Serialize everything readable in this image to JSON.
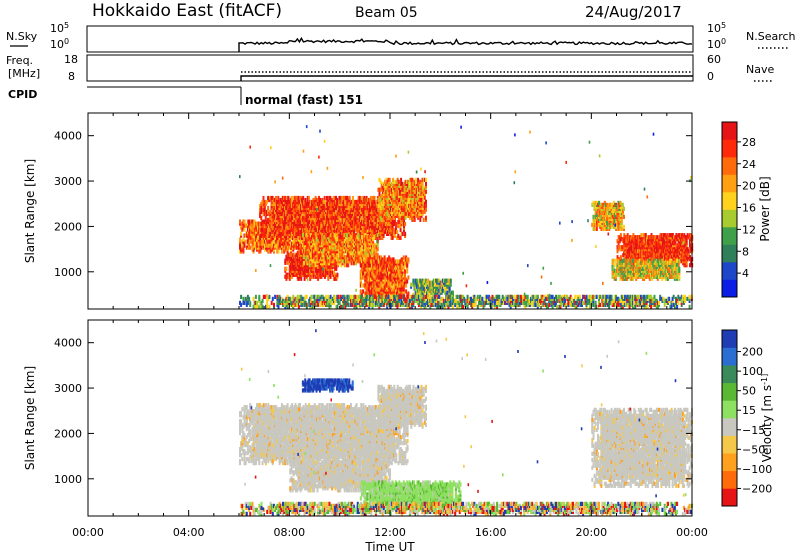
{
  "header": {
    "station": "Hokkaido East (fitACF)",
    "beam": "Beam 05",
    "date": "24/Aug/2017"
  },
  "top_panels": {
    "nsky_label": "N.Sky",
    "nsky_ticks": [
      "10^5",
      "10^0"
    ],
    "nsearch_label": "N.Search",
    "freq_label_line1": "Freq.",
    "freq_label_line2": "[MHz]",
    "freq_ticks": [
      "18",
      "8"
    ],
    "nave_ticks": [
      "60",
      "0"
    ],
    "nave_label": "Nave",
    "cpid_label": "CPID",
    "cpid_value": "normal (fast) 151"
  },
  "chart_data": [
    {
      "type": "heatmap",
      "name": "power",
      "ylabel": "Slant Range [km]",
      "xlabel": "",
      "xlim": [
        0,
        24
      ],
      "ylim": [
        180,
        4500
      ],
      "x_ticks": [
        "00:00",
        "04:00",
        "08:00",
        "12:00",
        "16:00",
        "20:00",
        "00:00"
      ],
      "y_ticks": [
        1000,
        2000,
        3000,
        4000
      ],
      "colorbar": {
        "label": "Power [dB]",
        "ticks": [
          "4",
          "8",
          "12",
          "16",
          "20",
          "24",
          "28"
        ],
        "colors": [
          "#0a1ee6",
          "#1e46c8",
          "#2f7f5a",
          "#3fa04a",
          "#a8cc30",
          "#ffd21e",
          "#ffa012",
          "#ff6a0a",
          "#ff2a0a",
          "#e61414"
        ]
      },
      "echo_regions": [
        {
          "t0": 6.0,
          "t1": 9.8,
          "r0": 1400,
          "r1": 2100,
          "level": 0.75
        },
        {
          "t0": 6.8,
          "t1": 12.6,
          "r0": 1700,
          "r1": 2600,
          "level": 0.85
        },
        {
          "t0": 7.8,
          "t1": 9.9,
          "r0": 800,
          "r1": 1400,
          "level": 0.9
        },
        {
          "t0": 8.5,
          "t1": 11.5,
          "r0": 1100,
          "r1": 1800,
          "level": 0.7
        },
        {
          "t0": 10.8,
          "t1": 12.7,
          "r0": 300,
          "r1": 1300,
          "level": 0.8
        },
        {
          "t0": 11.5,
          "t1": 13.4,
          "r0": 2100,
          "r1": 3000,
          "level": 0.7
        },
        {
          "t0": 12.8,
          "t1": 14.5,
          "r0": 450,
          "r1": 800,
          "level": 0.4
        },
        {
          "t0": 20.0,
          "t1": 21.3,
          "r0": 1900,
          "r1": 2500,
          "level": 0.6
        },
        {
          "t0": 21.0,
          "t1": 24.0,
          "r0": 1100,
          "r1": 1800,
          "level": 0.9
        },
        {
          "t0": 20.8,
          "t1": 23.5,
          "r0": 800,
          "r1": 1200,
          "level": 0.55
        },
        {
          "t0": 6.0,
          "t1": 24.0,
          "r0": 180,
          "r1": 420,
          "level": 0.35
        }
      ]
    },
    {
      "type": "heatmap",
      "name": "velocity",
      "ylabel": "Slant Range [km]",
      "xlabel": "Time UT",
      "xlim": [
        0,
        24
      ],
      "ylim": [
        180,
        4500
      ],
      "x_ticks": [
        "00:00",
        "04:00",
        "08:00",
        "12:00",
        "16:00",
        "20:00",
        "00:00"
      ],
      "y_ticks": [
        1000,
        2000,
        3000,
        4000
      ],
      "colorbar": {
        "label": "Velocity [m s^-1]",
        "ticks": [
          "200",
          "100",
          "50",
          "15",
          "−15",
          "−50",
          "−100",
          "−200"
        ],
        "colors": [
          "#1e3cb4",
          "#2a6ed2",
          "#3a8a5a",
          "#5ab832",
          "#8ee060",
          "#c8c8c0",
          "#f5c84a",
          "#ffa01e",
          "#ff6a0a",
          "#e61414"
        ]
      },
      "echo_regions": [
        {
          "t0": 6.0,
          "t1": 12.7,
          "r0": 1300,
          "r1": 2600,
          "class": "ground"
        },
        {
          "t0": 8.0,
          "t1": 12.0,
          "r0": 700,
          "r1": 1400,
          "class": "ground"
        },
        {
          "t0": 11.5,
          "t1": 13.4,
          "r0": 2100,
          "r1": 3000,
          "class": "ground"
        },
        {
          "t0": 20.0,
          "t1": 24.0,
          "r0": 800,
          "r1": 2500,
          "class": "ground"
        },
        {
          "t0": 10.8,
          "t1": 14.8,
          "r0": 300,
          "r1": 900,
          "class": "green"
        },
        {
          "t0": 8.5,
          "t1": 10.5,
          "r0": 2900,
          "r1": 3150,
          "class": "blue"
        },
        {
          "t0": 6.0,
          "t1": 24.0,
          "r0": 180,
          "r1": 420,
          "class": "mixed"
        }
      ]
    }
  ]
}
